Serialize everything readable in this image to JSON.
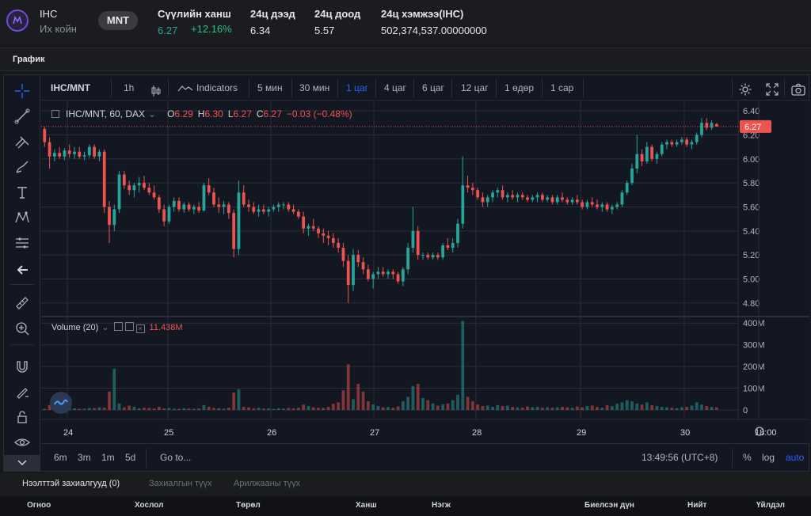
{
  "ticker": {
    "symbol": "IHC",
    "name": "Их койн",
    "quote": "MNT",
    "last_label": "Сүүлийн ханш",
    "last_price": "6.27",
    "last_change": "+12.16%",
    "high_label": "24ц дээд",
    "high_value": "6.34",
    "low_label": "24ц доод",
    "low_value": "5.57",
    "volume_label": "24ц хэмжээ(IHC)",
    "volume_value": "502,374,537.00000000"
  },
  "section": {
    "title": "График"
  },
  "toolbar": {
    "symbol": "IHC/MNT",
    "interval": "1h",
    "indicators": "Indicators",
    "timeframes": [
      "5 мин",
      "30 мин",
      "1 цаг",
      "4 цаг",
      "6 цаг",
      "12 цаг",
      "1 өдөр",
      "1 сар"
    ],
    "active_timeframe": "1 цаг"
  },
  "legend": {
    "title": "IHC/MNT, 60, DAX",
    "open_label": "O",
    "open_value": "6.29",
    "high_label": "H",
    "high_value": "6.30",
    "low_label": "L",
    "low_value": "6.27",
    "close_label": "C",
    "close_value": "6.27",
    "change": "−0.03 (−0.48%)"
  },
  "volume_legend": {
    "title": "Volume (20)",
    "value": "11.438M"
  },
  "price_axis": {
    "ticks": [
      "6.40",
      "6.20",
      "6.00",
      "5.80",
      "5.60",
      "5.40",
      "5.20",
      "5.00",
      "4.80"
    ],
    "last_price_tag": "6.27"
  },
  "volume_axis": {
    "ticks": [
      "400M",
      "300M",
      "200M",
      "100M",
      "0"
    ]
  },
  "time_axis": {
    "ticks": [
      "24",
      "25",
      "26",
      "27",
      "28",
      "29",
      "30",
      "18:00"
    ]
  },
  "bottom_bar": {
    "ranges": [
      "6m",
      "3m",
      "1m",
      "5d"
    ],
    "goto": "Go to...",
    "clock": "13:49:56 (UTC+8)",
    "percent": "%",
    "log": "log",
    "auto": "auto"
  },
  "orders": {
    "tabs": [
      "Нээлттэй захиалгууд (0)",
      "Захиалгын түүх",
      "Арилжааны түүх"
    ],
    "columns": [
      "Огноо",
      "Хослол",
      "Төрөл",
      "Ханш",
      "Нэгж",
      "Биелсэн дүн",
      "Нийт",
      "Үйлдэл"
    ]
  },
  "colors": {
    "up": "#26a69a",
    "down": "#ef5350",
    "accent": "#2962ff",
    "background": "#131722"
  },
  "chart_data": {
    "type": "candlestick",
    "x_ticks": [
      "24",
      "25",
      "26",
      "27",
      "28",
      "29",
      "30",
      "18:00"
    ],
    "price_range": [
      4.7,
      6.48
    ],
    "volume_range": [
      0,
      430000000
    ],
    "last_price": 6.27,
    "ohlc_hourly": [
      [
        6.25,
        6.27,
        6.1,
        6.14
      ],
      [
        6.14,
        6.18,
        5.92,
        6.02
      ],
      [
        6.02,
        6.08,
        5.98,
        6.05
      ],
      [
        6.05,
        6.1,
        6.0,
        6.02
      ],
      [
        6.02,
        6.09,
        5.99,
        6.07
      ],
      [
        6.07,
        6.12,
        6.01,
        6.04
      ],
      [
        6.04,
        6.1,
        6.0,
        6.06
      ],
      [
        6.06,
        6.1,
        6.0,
        6.02
      ],
      [
        6.02,
        6.06,
        5.99,
        6.03
      ],
      [
        6.03,
        6.12,
        6.01,
        6.1
      ],
      [
        6.1,
        6.12,
        6.0,
        6.02
      ],
      [
        6.02,
        6.08,
        5.98,
        6.06
      ],
      [
        6.06,
        6.08,
        5.55,
        5.6
      ],
      [
        5.6,
        5.65,
        5.3,
        5.45
      ],
      [
        5.45,
        5.62,
        5.4,
        5.58
      ],
      [
        5.58,
        5.9,
        5.55,
        5.87
      ],
      [
        5.87,
        5.9,
        5.75,
        5.78
      ],
      [
        5.78,
        5.82,
        5.7,
        5.74
      ],
      [
        5.74,
        5.8,
        5.68,
        5.78
      ],
      [
        5.78,
        5.85,
        5.72,
        5.8
      ],
      [
        5.8,
        5.86,
        5.74,
        5.76
      ],
      [
        5.76,
        5.8,
        5.7,
        5.72
      ],
      [
        5.72,
        5.78,
        5.66,
        5.68
      ],
      [
        5.68,
        5.7,
        5.55,
        5.58
      ],
      [
        5.58,
        5.62,
        5.44,
        5.48
      ],
      [
        5.48,
        5.62,
        5.46,
        5.6
      ],
      [
        5.6,
        5.68,
        5.56,
        5.65
      ],
      [
        5.65,
        5.68,
        5.56,
        5.58
      ],
      [
        5.58,
        5.64,
        5.55,
        5.62
      ],
      [
        5.62,
        5.64,
        5.56,
        5.58
      ],
      [
        5.58,
        5.62,
        5.54,
        5.6
      ],
      [
        5.6,
        5.64,
        5.55,
        5.57
      ],
      [
        5.57,
        5.8,
        5.56,
        5.78
      ],
      [
        5.78,
        5.84,
        5.7,
        5.72
      ],
      [
        5.72,
        5.76,
        5.6,
        5.62
      ],
      [
        5.62,
        5.68,
        5.55,
        5.6
      ],
      [
        5.6,
        5.65,
        5.54,
        5.62
      ],
      [
        5.62,
        5.64,
        5.5,
        5.55
      ],
      [
        5.55,
        5.58,
        5.18,
        5.25
      ],
      [
        5.25,
        5.82,
        5.2,
        5.72
      ],
      [
        5.72,
        5.78,
        5.6,
        5.62
      ],
      [
        5.62,
        5.66,
        5.56,
        5.6
      ],
      [
        5.6,
        5.64,
        5.54,
        5.56
      ],
      [
        5.56,
        5.62,
        5.52,
        5.58
      ],
      [
        5.58,
        5.62,
        5.54,
        5.56
      ],
      [
        5.56,
        5.6,
        5.52,
        5.58
      ],
      [
        5.58,
        5.62,
        5.56,
        5.6
      ],
      [
        5.6,
        5.64,
        5.56,
        5.62
      ],
      [
        5.62,
        5.64,
        5.58,
        5.62
      ],
      [
        5.62,
        5.64,
        5.56,
        5.58
      ],
      [
        5.58,
        5.62,
        5.54,
        5.56
      ],
      [
        5.56,
        5.58,
        5.5,
        5.52
      ],
      [
        5.52,
        5.56,
        5.38,
        5.42
      ],
      [
        5.42,
        5.46,
        5.36,
        5.44
      ],
      [
        5.44,
        5.5,
        5.4,
        5.42
      ],
      [
        5.42,
        5.44,
        5.34,
        5.38
      ],
      [
        5.38,
        5.42,
        5.3,
        5.36
      ],
      [
        5.36,
        5.4,
        5.28,
        5.34
      ],
      [
        5.34,
        5.38,
        5.26,
        5.3
      ],
      [
        5.3,
        5.34,
        5.22,
        5.26
      ],
      [
        5.26,
        5.3,
        5.1,
        5.15
      ],
      [
        5.15,
        5.2,
        4.8,
        4.95
      ],
      [
        4.95,
        5.25,
        4.9,
        5.2
      ],
      [
        5.2,
        5.24,
        5.1,
        5.14
      ],
      [
        5.14,
        5.18,
        5.04,
        5.08
      ],
      [
        5.08,
        5.12,
        4.98,
        5.0
      ],
      [
        5.0,
        5.06,
        4.92,
        5.04
      ],
      [
        5.04,
        5.1,
        5.0,
        5.06
      ],
      [
        5.06,
        5.1,
        5.02,
        5.04
      ],
      [
        5.04,
        5.08,
        5.0,
        5.06
      ],
      [
        5.06,
        5.08,
        5.0,
        5.04
      ],
      [
        5.04,
        5.06,
        4.96,
        4.98
      ],
      [
        4.98,
        5.1,
        4.94,
        5.08
      ],
      [
        5.08,
        5.3,
        5.04,
        5.26
      ],
      [
        5.26,
        5.6,
        5.22,
        5.4
      ],
      [
        5.4,
        5.44,
        5.16,
        5.2
      ],
      [
        5.2,
        5.22,
        5.16,
        5.2
      ],
      [
        5.2,
        5.22,
        5.16,
        5.18
      ],
      [
        5.18,
        5.22,
        5.16,
        5.2
      ],
      [
        5.2,
        5.22,
        5.16,
        5.18
      ],
      [
        5.18,
        5.3,
        5.16,
        5.28
      ],
      [
        5.28,
        5.34,
        5.24,
        5.26
      ],
      [
        5.26,
        5.34,
        5.22,
        5.3
      ],
      [
        5.3,
        5.5,
        5.26,
        5.46
      ],
      [
        5.46,
        6.02,
        5.42,
        5.78
      ],
      [
        5.78,
        5.86,
        5.72,
        5.76
      ],
      [
        5.76,
        5.8,
        5.7,
        5.74
      ],
      [
        5.74,
        5.76,
        5.66,
        5.68
      ],
      [
        5.68,
        5.72,
        5.6,
        5.64
      ],
      [
        5.64,
        5.7,
        5.6,
        5.68
      ],
      [
        5.68,
        5.74,
        5.64,
        5.72
      ],
      [
        5.72,
        5.76,
        5.68,
        5.74
      ],
      [
        5.74,
        5.78,
        5.66,
        5.68
      ],
      [
        5.68,
        5.72,
        5.64,
        5.7
      ],
      [
        5.7,
        5.74,
        5.66,
        5.68
      ],
      [
        5.68,
        5.72,
        5.64,
        5.7
      ],
      [
        5.7,
        5.72,
        5.66,
        5.68
      ],
      [
        5.68,
        5.7,
        5.64,
        5.66
      ],
      [
        5.66,
        5.7,
        5.64,
        5.68
      ],
      [
        5.68,
        5.72,
        5.64,
        5.7
      ],
      [
        5.7,
        5.72,
        5.64,
        5.66
      ],
      [
        5.66,
        5.7,
        5.64,
        5.68
      ],
      [
        5.68,
        5.7,
        5.62,
        5.64
      ],
      [
        5.64,
        5.7,
        5.62,
        5.68
      ],
      [
        5.68,
        5.72,
        5.64,
        5.66
      ],
      [
        5.66,
        5.68,
        5.62,
        5.64
      ],
      [
        5.64,
        5.68,
        5.62,
        5.66
      ],
      [
        5.66,
        5.7,
        5.62,
        5.64
      ],
      [
        5.64,
        5.66,
        5.58,
        5.6
      ],
      [
        5.6,
        5.66,
        5.58,
        5.64
      ],
      [
        5.64,
        5.68,
        5.6,
        5.62
      ],
      [
        5.62,
        5.66,
        5.58,
        5.6
      ],
      [
        5.6,
        5.64,
        5.56,
        5.62
      ],
      [
        5.62,
        5.64,
        5.56,
        5.58
      ],
      [
        5.58,
        5.62,
        5.54,
        5.6
      ],
      [
        5.6,
        5.64,
        5.58,
        5.62
      ],
      [
        5.62,
        5.74,
        5.6,
        5.72
      ],
      [
        5.72,
        5.82,
        5.7,
        5.8
      ],
      [
        5.8,
        5.96,
        5.78,
        5.92
      ],
      [
        5.92,
        6.2,
        5.88,
        6.04
      ],
      [
        6.04,
        6.08,
        5.94,
        5.98
      ],
      [
        5.98,
        6.14,
        5.96,
        6.1
      ],
      [
        6.1,
        6.12,
        5.98,
        6.0
      ],
      [
        6.0,
        6.06,
        5.96,
        6.04
      ],
      [
        6.04,
        6.14,
        6.02,
        6.12
      ],
      [
        6.12,
        6.16,
        6.08,
        6.14
      ],
      [
        6.14,
        6.16,
        6.1,
        6.12
      ],
      [
        6.12,
        6.16,
        6.1,
        6.14
      ],
      [
        6.14,
        6.18,
        6.12,
        6.16
      ],
      [
        6.16,
        6.18,
        6.1,
        6.12
      ],
      [
        6.12,
        6.16,
        6.08,
        6.14
      ],
      [
        6.14,
        6.22,
        6.12,
        6.2
      ],
      [
        6.2,
        6.34,
        6.18,
        6.3
      ],
      [
        6.3,
        6.34,
        6.24,
        6.26
      ],
      [
        6.26,
        6.32,
        6.24,
        6.3
      ],
      [
        6.29,
        6.3,
        6.27,
        6.27
      ]
    ],
    "volumes_millions": [
      5,
      22,
      8,
      10,
      6,
      12,
      7,
      5,
      6,
      9,
      8,
      12,
      10,
      85,
      190,
      30,
      12,
      20,
      15,
      8,
      10,
      9,
      6,
      14,
      7,
      9,
      6,
      5,
      8,
      6,
      5,
      7,
      22,
      15,
      9,
      8,
      6,
      11,
      80,
      95,
      14,
      12,
      8,
      10,
      6,
      7,
      5,
      8,
      6,
      9,
      7,
      10,
      25,
      18,
      12,
      10,
      9,
      14,
      28,
      35,
      90,
      210,
      50,
      120,
      85,
      40,
      25,
      18,
      12,
      14,
      10,
      16,
      40,
      60,
      110,
      120,
      55,
      45,
      30,
      20,
      26,
      30,
      45,
      70,
      410,
      60,
      40,
      25,
      18,
      20,
      15,
      22,
      18,
      20,
      14,
      12,
      10,
      16,
      12,
      14,
      10,
      12,
      10,
      12,
      14,
      12,
      10,
      16,
      12,
      18,
      20,
      14,
      10,
      22,
      18,
      30,
      35,
      45,
      40,
      30,
      25,
      35,
      22,
      18,
      14,
      12,
      10,
      8,
      12,
      14,
      20,
      35,
      25,
      18,
      14,
      12
    ]
  }
}
